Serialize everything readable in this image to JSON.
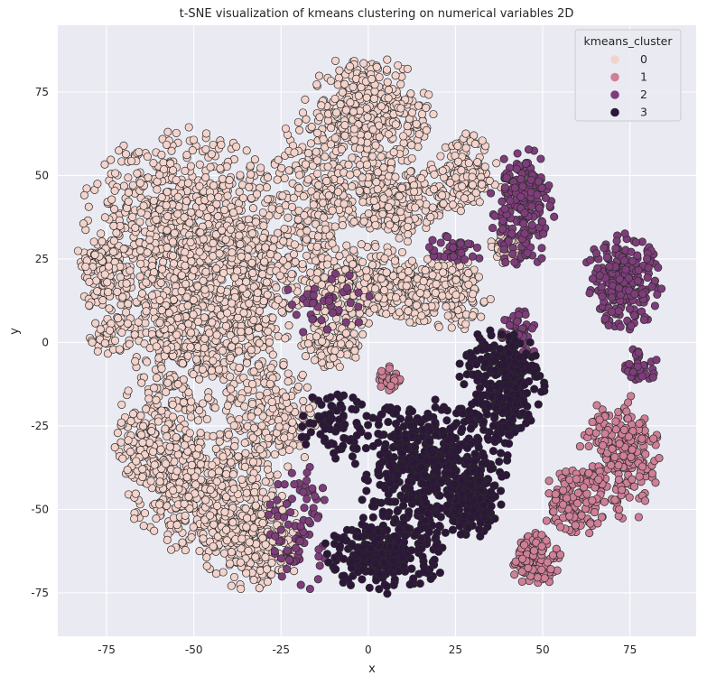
{
  "chart_data": {
    "type": "scatter",
    "title": "t-SNE visualization of kmeans clustering on numerical variables 2D",
    "xlabel": "x",
    "ylabel": "y",
    "xlim": [
      -89,
      94
    ],
    "ylim": [
      -88,
      95
    ],
    "xticks": [
      -75,
      -50,
      -25,
      0,
      25,
      50,
      75
    ],
    "yticks": [
      -75,
      -50,
      -25,
      0,
      25,
      50,
      75
    ],
    "grid": true,
    "legend": {
      "title": "kmeans_cluster",
      "placement": "top-right",
      "entries": [
        {
          "label": "0",
          "color": "#f3d3cb"
        },
        {
          "label": "1",
          "color": "#cf7f97"
        },
        {
          "label": "2",
          "color": "#7e3d7a"
        },
        {
          "label": "3",
          "color": "#2c1639"
        }
      ]
    },
    "background_color": "#eaeaf2",
    "marker_edge_color": "#2b2b2b",
    "clusters": [
      {
        "name": "0",
        "color": "#f3d3cb",
        "count": 4500,
        "regions": [
          {
            "cx": -53,
            "cy": 30,
            "rx": 30,
            "ry": 33,
            "w": 20
          },
          {
            "cx": -50,
            "cy": -3,
            "rx": 20,
            "ry": 20,
            "w": 6
          },
          {
            "cx": -33,
            "cy": 15,
            "rx": 14,
            "ry": 24,
            "w": 5
          },
          {
            "cx": -17,
            "cy": 40,
            "rx": 12,
            "ry": 30,
            "w": 5
          },
          {
            "cx": -75,
            "cy": 20,
            "rx": 7,
            "ry": 12,
            "w": 2
          },
          {
            "cx": -74,
            "cy": 3,
            "rx": 6,
            "ry": 7,
            "w": 1
          },
          {
            "cx": -47,
            "cy": -45,
            "rx": 22,
            "ry": 18,
            "w": 9
          },
          {
            "cx": -60,
            "cy": -28,
            "rx": 13,
            "ry": 18,
            "w": 4
          },
          {
            "cx": -33,
            "cy": -60,
            "rx": 15,
            "ry": 15,
            "w": 5
          },
          {
            "cx": -28,
            "cy": -22,
            "rx": 13,
            "ry": 18,
            "w": 4
          },
          {
            "cx": 0,
            "cy": 68,
            "rx": 18,
            "ry": 18,
            "w": 7
          },
          {
            "cx": 5,
            "cy": 43,
            "rx": 18,
            "ry": 14,
            "w": 5
          },
          {
            "cx": 0,
            "cy": 17,
            "rx": 18,
            "ry": 12,
            "w": 6
          },
          {
            "cx": 22,
            "cy": 15,
            "rx": 14,
            "ry": 12,
            "w": 4
          },
          {
            "cx": 28,
            "cy": 50,
            "rx": 10,
            "ry": 12,
            "w": 3
          },
          {
            "cx": 40,
            "cy": 28,
            "rx": 6,
            "ry": 5,
            "w": 1
          },
          {
            "cx": -10,
            "cy": 0,
            "rx": 10,
            "ry": 8,
            "w": 2
          }
        ]
      },
      {
        "name": "1",
        "color": "#cf7f97",
        "count": 500,
        "regions": [
          {
            "cx": 72,
            "cy": -35,
            "rx": 11,
            "ry": 19,
            "w": 6
          },
          {
            "cx": 59,
            "cy": -48,
            "rx": 9,
            "ry": 10,
            "w": 3
          },
          {
            "cx": 48,
            "cy": -65,
            "rx": 7,
            "ry": 8,
            "w": 3
          },
          {
            "cx": 6,
            "cy": -11,
            "rx": 3,
            "ry": 4,
            "w": 1
          }
        ]
      },
      {
        "name": "2",
        "color": "#7e3d7a",
        "count": 700,
        "regions": [
          {
            "cx": 44,
            "cy": 40,
            "rx": 9,
            "ry": 18,
            "w": 5
          },
          {
            "cx": 73,
            "cy": 18,
            "rx": 11,
            "ry": 14,
            "w": 6
          },
          {
            "cx": 25,
            "cy": 28,
            "rx": 8,
            "ry": 5,
            "w": 1
          },
          {
            "cx": 78,
            "cy": -7,
            "rx": 5,
            "ry": 6,
            "w": 1
          },
          {
            "cx": 43,
            "cy": 3,
            "rx": 6,
            "ry": 8,
            "w": 1
          },
          {
            "cx": -20,
            "cy": -55,
            "rx": 9,
            "ry": 20,
            "w": 2
          },
          {
            "cx": -12,
            "cy": 12,
            "rx": 12,
            "ry": 10,
            "w": 1
          }
        ]
      },
      {
        "name": "3",
        "color": "#2c1639",
        "count": 1300,
        "regions": [
          {
            "cx": 18,
            "cy": -37,
            "rx": 22,
            "ry": 20,
            "w": 7
          },
          {
            "cx": 38,
            "cy": -12,
            "rx": 12,
            "ry": 18,
            "w": 4
          },
          {
            "cx": 5,
            "cy": -63,
            "rx": 17,
            "ry": 12,
            "w": 4
          },
          {
            "cx": 30,
            "cy": -48,
            "rx": 8,
            "ry": 10,
            "w": 2
          },
          {
            "cx": -10,
            "cy": -25,
            "rx": 10,
            "ry": 10,
            "w": 1
          }
        ]
      }
    ]
  }
}
